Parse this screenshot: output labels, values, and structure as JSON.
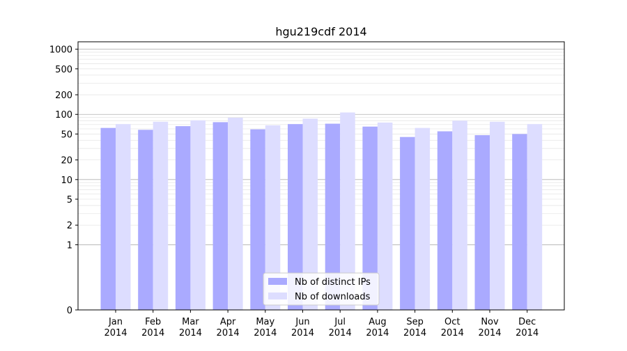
{
  "chart_data": {
    "type": "bar",
    "title": "hgu219cdf 2014",
    "xlabel": "",
    "ylabel": "",
    "yscale": "symlog",
    "ylim": [
      0,
      1300
    ],
    "grid": true,
    "legend_position": "bottom-center",
    "categories": [
      [
        "Jan",
        "2014"
      ],
      [
        "Feb",
        "2014"
      ],
      [
        "Mar",
        "2014"
      ],
      [
        "Apr",
        "2014"
      ],
      [
        "May",
        "2014"
      ],
      [
        "Jun",
        "2014"
      ],
      [
        "Jul",
        "2014"
      ],
      [
        "Aug",
        "2014"
      ],
      [
        "Sep",
        "2014"
      ],
      [
        "Oct",
        "2014"
      ],
      [
        "Nov",
        "2014"
      ],
      [
        "Dec",
        "2014"
      ]
    ],
    "yticks": [
      {
        "value": 0,
        "label": "0"
      },
      {
        "value": 1,
        "label": "1"
      },
      {
        "value": 2,
        "label": "2"
      },
      {
        "value": 5,
        "label": "5"
      },
      {
        "value": 10,
        "label": "10"
      },
      {
        "value": 20,
        "label": "20"
      },
      {
        "value": 50,
        "label": "50"
      },
      {
        "value": 100,
        "label": "100"
      },
      {
        "value": 200,
        "label": "200"
      },
      {
        "value": 500,
        "label": "500"
      },
      {
        "value": 1000,
        "label": "1000"
      }
    ],
    "series": [
      {
        "name": "Nb of distinct IPs",
        "color": "#aaaaff",
        "values": [
          62,
          58,
          66,
          76,
          59,
          71,
          72,
          65,
          45,
          55,
          48,
          50
        ]
      },
      {
        "name": "Nb of downloads",
        "color": "#ddddff",
        "values": [
          71,
          77,
          81,
          89,
          68,
          86,
          107,
          75,
          62,
          80,
          77,
          71
        ]
      }
    ]
  }
}
